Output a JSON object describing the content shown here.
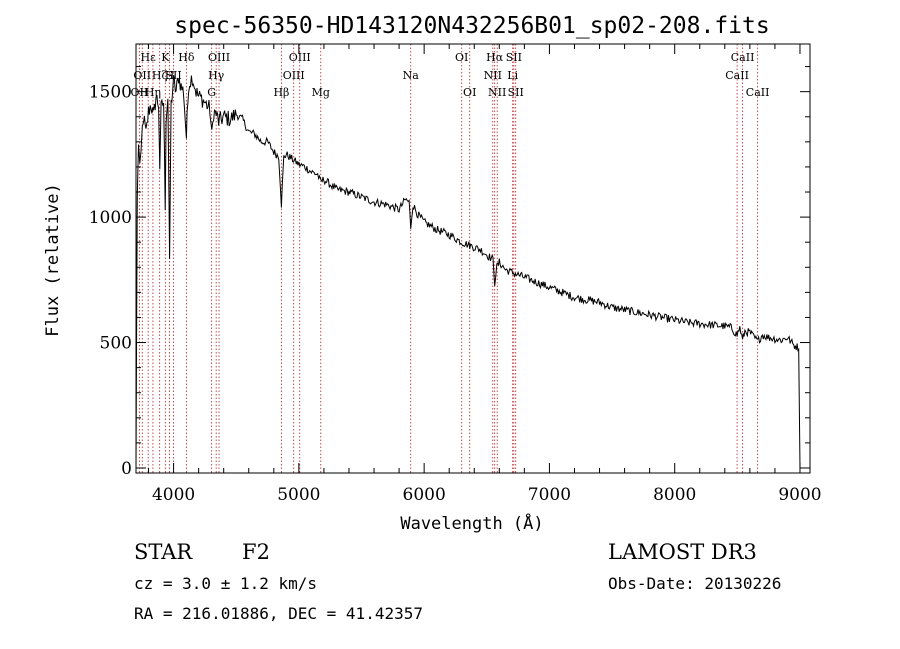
{
  "chart_data": {
    "type": "line",
    "title": "spec-56350-HD143120N432256B01_sp02-208.fits",
    "xlabel": "Wavelength (Å)",
    "ylabel": "Flux (relative)",
    "xlim": [
      3700,
      9080
    ],
    "ylim": [
      -20,
      1690
    ],
    "xticks": [
      4000,
      5000,
      6000,
      7000,
      8000,
      9000
    ],
    "yticks": [
      0,
      500,
      1000,
      1500
    ],
    "series": [
      {
        "name": "Flux",
        "x": [
          3700,
          3705,
          3710,
          3720,
          3730,
          3740,
          3750,
          3760,
          3780,
          3800,
          3820,
          3840,
          3860,
          3880,
          3890,
          3900,
          3920,
          3933,
          3940,
          3955,
          3968,
          3980,
          4000,
          4020,
          4040,
          4060,
          4080,
          4102,
          4120,
          4150,
          4180,
          4200,
          4230,
          4260,
          4290,
          4305,
          4320,
          4340,
          4360,
          4400,
          4450,
          4500,
          4550,
          4600,
          4650,
          4700,
          4750,
          4800,
          4840,
          4861,
          4880,
          4900,
          4950,
          5000,
          5050,
          5100,
          5150,
          5172,
          5200,
          5300,
          5400,
          5500,
          5600,
          5700,
          5800,
          5850,
          5880,
          5893,
          5910,
          5950,
          6000,
          6100,
          6200,
          6300,
          6400,
          6450,
          6500,
          6550,
          6563,
          6580,
          6600,
          6650,
          6700,
          6750,
          6800,
          6900,
          7000,
          7100,
          7200,
          7300,
          7400,
          7500,
          7600,
          7700,
          7800,
          7900,
          8000,
          8100,
          8200,
          8300,
          8400,
          8450,
          8498,
          8520,
          8542,
          8560,
          8600,
          8662,
          8700,
          8750,
          8800,
          8850,
          8900,
          8950,
          8990,
          9000,
          9005
        ],
        "values": [
          0,
          520,
          1100,
          1280,
          1180,
          1250,
          1350,
          1400,
          1330,
          1420,
          1450,
          1400,
          1480,
          1450,
          1200,
          1430,
          1460,
          1050,
          1400,
          1480,
          800,
          1450,
          1540,
          1500,
          1560,
          1520,
          1500,
          1320,
          1530,
          1560,
          1500,
          1480,
          1470,
          1450,
          1430,
          1320,
          1420,
          1410,
          1380,
          1400,
          1390,
          1410,
          1390,
          1340,
          1330,
          1300,
          1300,
          1260,
          1240,
          1050,
          1240,
          1250,
          1230,
          1210,
          1200,
          1180,
          1170,
          1140,
          1150,
          1110,
          1100,
          1080,
          1060,
          1050,
          1030,
          1070,
          1060,
          960,
          1050,
          1010,
          980,
          950,
          930,
          900,
          880,
          870,
          850,
          830,
          740,
          800,
          820,
          790,
          780,
          770,
          760,
          740,
          720,
          700,
          680,
          670,
          660,
          640,
          630,
          620,
          610,
          600,
          590,
          580,
          575,
          570,
          565,
          560,
          530,
          560,
          510,
          545,
          540,
          505,
          530,
          520,
          515,
          510,
          520,
          490,
          480,
          0,
          0
        ]
      }
    ],
    "line_markers": [
      {
        "wl": 3727,
        "label": "OII",
        "row": 3
      },
      {
        "wl": 3750,
        "label": "OII",
        "row": 2
      },
      {
        "wl": 3797,
        "label": "Hε",
        "row": 1
      },
      {
        "wl": 3835,
        "label": "Hη",
        "row": 3
      },
      {
        "wl": 3889,
        "label": "Hζ",
        "row": 2
      },
      {
        "wl": 3934,
        "label": "K",
        "row": 1
      },
      {
        "wl": 3968,
        "label": "H",
        "row": 2
      },
      {
        "wl": 4000,
        "label": "SII",
        "row": 2
      },
      {
        "wl": 4102,
        "label": "Hδ",
        "row": 1
      },
      {
        "wl": 4304,
        "label": "G",
        "row": 3
      },
      {
        "wl": 4340,
        "label": "Hγ",
        "row": 2
      },
      {
        "wl": 4363,
        "label": "OIII",
        "row": 1
      },
      {
        "wl": 4861,
        "label": "Hβ",
        "row": 3
      },
      {
        "wl": 4959,
        "label": "OIII",
        "row": 2
      },
      {
        "wl": 5007,
        "label": "OIII",
        "row": 1
      },
      {
        "wl": 5175,
        "label": "Mg",
        "row": 3
      },
      {
        "wl": 5893,
        "label": "Na",
        "row": 2
      },
      {
        "wl": 6300,
        "label": "OI",
        "row": 1
      },
      {
        "wl": 6364,
        "label": "OI",
        "row": 3
      },
      {
        "wl": 6548,
        "label": "NII",
        "row": 2
      },
      {
        "wl": 6563,
        "label": "Hα",
        "row": 1
      },
      {
        "wl": 6583,
        "label": "NII",
        "row": 3
      },
      {
        "wl": 6707,
        "label": "Li",
        "row": 2
      },
      {
        "wl": 6716,
        "label": "SII",
        "row": 1
      },
      {
        "wl": 6731,
        "label": "SII",
        "row": 3
      },
      {
        "wl": 8498,
        "label": "CaII",
        "row": 2
      },
      {
        "wl": 8542,
        "label": "CaII",
        "row": 1
      },
      {
        "wl": 8662,
        "label": "CaII",
        "row": 3
      }
    ]
  },
  "info": {
    "object_class": "STAR",
    "subclass": "F2",
    "cz": "cz = 3.0 ± 1.2 km/s",
    "coords": "RA = 216.01886, DEC =  41.42357",
    "survey": "LAMOST DR3",
    "obs_date": "Obs-Date: 20130226"
  },
  "colors": {
    "axis": "#000000",
    "spectrum": "#000000",
    "marker_line": "#b22222"
  }
}
